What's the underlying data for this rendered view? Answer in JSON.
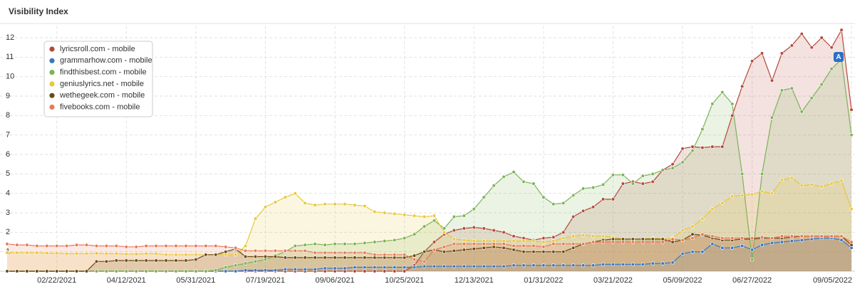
{
  "chart_data": {
    "type": "area",
    "title": "Visibility Index",
    "annotation": "A",
    "categories": [
      null,
      null,
      null,
      null,
      null,
      "02/22/2021",
      null,
      null,
      null,
      null,
      null,
      null,
      "04/12/2021",
      null,
      null,
      null,
      null,
      null,
      null,
      "05/31/2021",
      null,
      null,
      null,
      null,
      null,
      null,
      "07/19/2021",
      null,
      null,
      null,
      null,
      null,
      null,
      "09/06/2021",
      null,
      null,
      null,
      null,
      null,
      null,
      "10/25/2021",
      null,
      null,
      null,
      null,
      null,
      null,
      "12/13/2021",
      null,
      null,
      null,
      null,
      null,
      null,
      "01/31/2022",
      null,
      null,
      null,
      null,
      null,
      null,
      "03/21/2022",
      null,
      null,
      null,
      null,
      null,
      null,
      "05/09/2022",
      null,
      null,
      null,
      null,
      null,
      null,
      "06/27/2022",
      null,
      null,
      null,
      null,
      null,
      null,
      null,
      null,
      null,
      "09/05/2022"
    ],
    "ylim": [
      0,
      12.6
    ],
    "yticks": [
      1,
      2,
      3,
      4,
      5,
      6,
      7,
      8,
      9,
      10,
      11,
      12
    ],
    "grid": true,
    "legend": "top-left",
    "series": [
      {
        "name": "lyricsroll.com - mobile",
        "color": "#b5483a",
        "values": [
          0,
          0,
          0,
          0,
          0,
          0,
          0,
          0,
          0,
          0,
          0,
          0,
          0,
          0,
          0,
          0,
          0,
          0,
          0,
          0,
          0,
          0,
          0,
          0,
          0,
          0,
          0,
          0,
          0,
          0,
          0,
          0,
          0,
          0,
          0,
          0,
          0,
          0,
          0,
          0,
          0,
          0.3,
          1.0,
          1.5,
          1.9,
          2.1,
          2.2,
          2.25,
          2.2,
          2.1,
          2.0,
          1.8,
          1.7,
          1.6,
          1.7,
          1.75,
          2.0,
          2.8,
          3.1,
          3.3,
          3.7,
          3.7,
          4.5,
          4.6,
          4.5,
          4.6,
          5.2,
          5.5,
          6.3,
          6.4,
          6.35,
          6.4,
          6.4,
          8.0,
          9.5,
          10.8,
          11.2,
          9.8,
          11.2,
          11.6,
          12.2,
          11.5,
          12.0,
          11.5,
          12.4,
          8.3
        ]
      },
      {
        "name": "grammarhow.com - mobile",
        "color": "#3a78c3",
        "values": [
          0,
          0,
          0,
          0,
          0,
          0,
          0,
          0,
          0,
          0,
          0,
          0,
          0,
          0,
          0,
          0,
          0,
          0,
          0,
          0,
          0,
          0,
          0,
          0,
          0.05,
          0.05,
          0.05,
          0.05,
          0.1,
          0.1,
          0.1,
          0.1,
          0.15,
          0.15,
          0.15,
          0.2,
          0.2,
          0.2,
          0.2,
          0.2,
          0.2,
          0.2,
          0.25,
          0.25,
          0.25,
          0.25,
          0.25,
          0.25,
          0.25,
          0.25,
          0.25,
          0.3,
          0.3,
          0.3,
          0.3,
          0.3,
          0.3,
          0.3,
          0.3,
          0.3,
          0.35,
          0.35,
          0.35,
          0.35,
          0.35,
          0.4,
          0.4,
          0.45,
          0.9,
          1.0,
          1.0,
          1.4,
          1.2,
          1.2,
          1.3,
          1.1,
          1.35,
          1.45,
          1.5,
          1.55,
          1.6,
          1.65,
          1.7,
          1.7,
          1.6,
          1.2
        ]
      },
      {
        "name": "findthisbest.com - mobile",
        "color": "#7cb356",
        "values": [
          0,
          0,
          0,
          0,
          0,
          0,
          0,
          0,
          0,
          0,
          0,
          0,
          0,
          0,
          0,
          0,
          0,
          0,
          0,
          0,
          0,
          0.05,
          0.2,
          0.3,
          0.4,
          0.5,
          0.6,
          0.8,
          1.0,
          1.3,
          1.35,
          1.4,
          1.35,
          1.4,
          1.4,
          1.4,
          1.45,
          1.5,
          1.55,
          1.6,
          1.7,
          1.9,
          2.3,
          2.6,
          2.2,
          2.8,
          2.85,
          3.2,
          3.8,
          4.4,
          4.85,
          5.1,
          4.6,
          4.5,
          3.8,
          3.45,
          3.5,
          3.9,
          4.25,
          4.3,
          4.45,
          4.95,
          4.95,
          4.5,
          4.9,
          5.0,
          5.2,
          5.3,
          5.6,
          6.2,
          7.3,
          8.6,
          9.2,
          8.6,
          5.0,
          0.6,
          5.0,
          7.9,
          9.3,
          9.4,
          8.2,
          8.9,
          9.6,
          10.4,
          10.9,
          7.0
        ]
      },
      {
        "name": "geniuslyrics.net - mobile",
        "color": "#e8c93a",
        "values": [
          0.95,
          0.95,
          0.95,
          0.95,
          0.93,
          0.93,
          0.9,
          0.9,
          0.9,
          0.92,
          0.9,
          0.9,
          0.88,
          0.88,
          0.9,
          0.9,
          0.85,
          0.85,
          0.85,
          0.85,
          0.85,
          0.85,
          0.85,
          0.85,
          1.3,
          2.7,
          3.3,
          3.55,
          3.8,
          4.0,
          3.5,
          3.4,
          3.45,
          3.45,
          3.45,
          3.4,
          3.35,
          3.05,
          3.0,
          2.95,
          2.9,
          2.85,
          2.8,
          2.85,
          2.0,
          1.65,
          1.6,
          1.55,
          1.55,
          1.55,
          1.55,
          1.55,
          1.55,
          1.55,
          1.5,
          1.55,
          1.7,
          1.8,
          1.85,
          1.8,
          1.8,
          1.75,
          1.65,
          1.6,
          1.65,
          1.7,
          1.65,
          1.7,
          2.1,
          2.3,
          2.7,
          3.2,
          3.5,
          3.85,
          3.9,
          3.95,
          4.1,
          4.0,
          4.7,
          4.8,
          4.4,
          4.45,
          4.35,
          4.5,
          4.65,
          3.2
        ]
      },
      {
        "name": "wethegeek.com - mobile",
        "color": "#6b4a14",
        "values": [
          0,
          0,
          0,
          0,
          0,
          0,
          0,
          0,
          0,
          0.5,
          0.5,
          0.55,
          0.55,
          0.55,
          0.55,
          0.55,
          0.55,
          0.55,
          0.55,
          0.6,
          0.85,
          0.85,
          1.0,
          1.15,
          0.75,
          0.75,
          0.75,
          0.75,
          0.7,
          0.7,
          0.7,
          0.7,
          0.7,
          0.7,
          0.7,
          0.7,
          0.7,
          0.7,
          0.7,
          0.7,
          0.7,
          0.8,
          1.0,
          1.1,
          1.0,
          1.05,
          1.1,
          1.15,
          1.2,
          1.25,
          1.2,
          1.1,
          1.0,
          1.0,
          1.0,
          1.0,
          1.0,
          1.2,
          1.4,
          1.5,
          1.6,
          1.65,
          1.65,
          1.65,
          1.65,
          1.65,
          1.65,
          1.5,
          1.6,
          1.9,
          1.85,
          1.7,
          1.6,
          1.6,
          1.65,
          1.65,
          1.7,
          1.7,
          1.7,
          1.75,
          1.8,
          1.8,
          1.8,
          1.8,
          1.8,
          1.35
        ]
      },
      {
        "name": "fivebooks.com - mobile",
        "color": "#e8795a",
        "values": [
          1.4,
          1.35,
          1.35,
          1.3,
          1.3,
          1.3,
          1.3,
          1.35,
          1.35,
          1.3,
          1.3,
          1.3,
          1.25,
          1.25,
          1.3,
          1.3,
          1.3,
          1.3,
          1.3,
          1.3,
          1.3,
          1.3,
          1.25,
          1.2,
          1.05,
          1.05,
          1.05,
          1.05,
          1.05,
          1.05,
          1.05,
          0.95,
          0.95,
          0.95,
          0.95,
          0.95,
          0.95,
          0.85,
          0.85,
          0.85,
          0.85,
          0.6,
          0.5,
          1.1,
          1.25,
          1.4,
          1.4,
          1.4,
          1.4,
          1.4,
          1.4,
          1.3,
          1.3,
          1.3,
          1.25,
          1.4,
          1.4,
          1.4,
          1.4,
          1.5,
          1.5,
          1.5,
          1.5,
          1.5,
          1.5,
          1.5,
          1.5,
          1.65,
          1.6,
          1.7,
          1.9,
          1.8,
          1.7,
          1.7,
          1.7,
          1.7,
          1.75,
          1.7,
          1.8,
          1.8,
          1.8,
          1.8,
          1.8,
          1.8,
          1.8,
          1.5
        ]
      }
    ]
  }
}
